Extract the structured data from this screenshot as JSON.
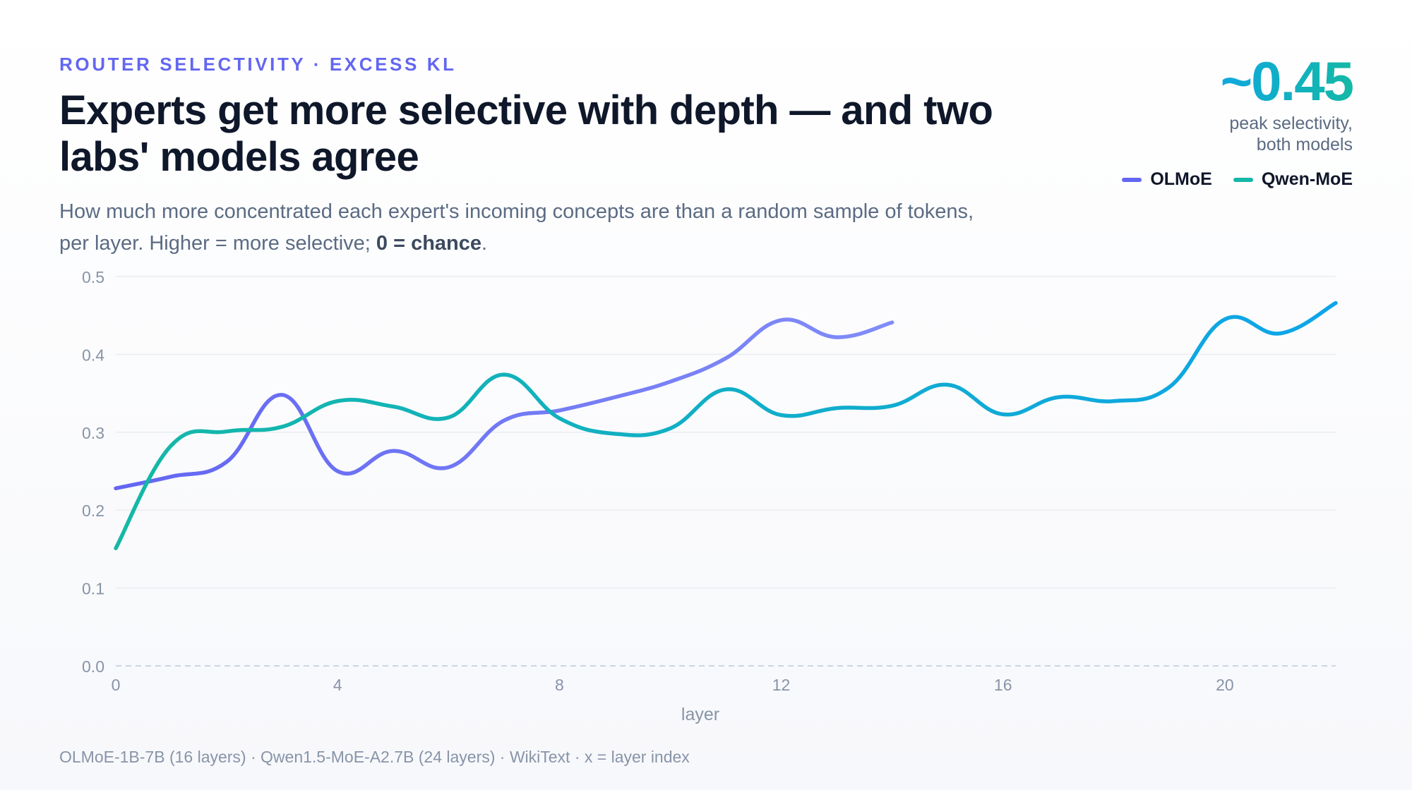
{
  "eyebrow": "ROUTER SELECTIVITY · EXCESS KL",
  "title": "Experts get more selective with depth — and two labs' models agree",
  "subtitle": {
    "main": "How much more concentrated each expert's incoming concepts are than a random sample of tokens, per layer. Higher = more selective; ",
    "emphasis": "0 = chance",
    "end": "."
  },
  "kpi": {
    "value": "~0.45",
    "label": "peak selectivity, both models"
  },
  "legend": [
    {
      "name": "OLMoE",
      "color": "#6366f1"
    },
    {
      "name": "Qwen-MoE",
      "color": "#14b8a6"
    }
  ],
  "footnote": "OLMoE-1B-7B (16 layers) · Qwen1.5-MoE-A2.7B (24 layers) · WikiText · x = layer index",
  "chart_data": {
    "type": "line",
    "xlabel": "layer",
    "ylabel": "",
    "xlim": [
      0,
      22
    ],
    "ylim": [
      0,
      0.5
    ],
    "xticks": [
      0,
      4,
      8,
      12,
      16,
      20
    ],
    "yticks": [
      0.0,
      0.1,
      0.2,
      0.3,
      0.4,
      0.5
    ],
    "ytick_labels": [
      "0.0",
      "0.1",
      "0.2",
      "0.3",
      "0.4",
      "0.5"
    ],
    "grid": true,
    "baseline_dashed_at": 0,
    "series": [
      {
        "name": "OLMoE",
        "color_start": "#6366f1",
        "color_end": "#818cf8",
        "x": [
          0,
          1,
          2,
          3,
          4,
          5,
          6,
          7,
          8,
          9,
          10,
          11,
          12,
          13,
          14
        ],
        "values": [
          0.228,
          0.243,
          0.262,
          0.348,
          0.25,
          0.276,
          0.255,
          0.315,
          0.328,
          0.345,
          0.365,
          0.395,
          0.444,
          0.422,
          0.441
        ]
      },
      {
        "name": "Qwen-MoE",
        "color_start": "#14b8a6",
        "color_end": "#0ea5e9",
        "x": [
          0,
          1,
          2,
          3,
          4,
          5,
          6,
          7,
          8,
          9,
          10,
          11,
          12,
          13,
          14,
          15,
          16,
          17,
          18,
          19,
          20,
          21,
          22
        ],
        "values": [
          0.151,
          0.283,
          0.301,
          0.307,
          0.34,
          0.333,
          0.319,
          0.374,
          0.318,
          0.298,
          0.305,
          0.355,
          0.322,
          0.331,
          0.334,
          0.361,
          0.323,
          0.345,
          0.34,
          0.358,
          0.445,
          0.427,
          0.466
        ]
      }
    ]
  }
}
